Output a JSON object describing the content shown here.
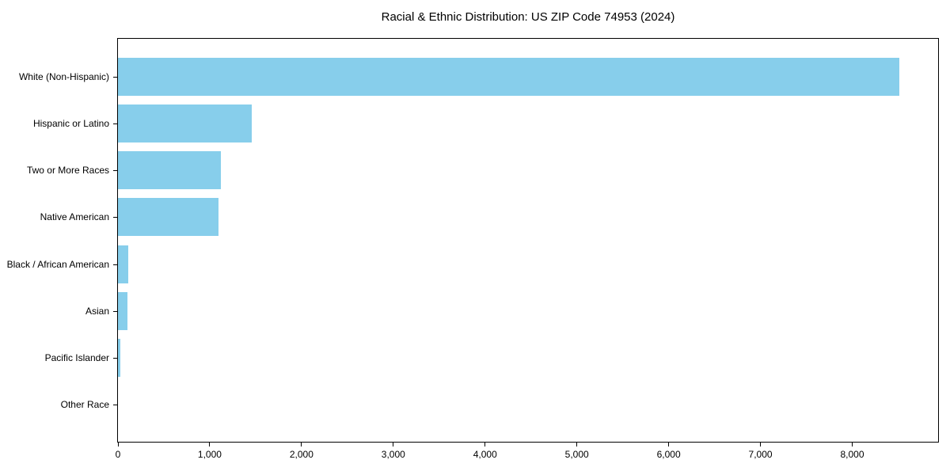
{
  "colors": {
    "bar": "#87CEEB",
    "axis": "#000000",
    "text": "#000000",
    "background": "#FFFFFF"
  },
  "chart_data": {
    "type": "bar",
    "orientation": "horizontal",
    "title": "Racial & Ethnic Distribution: US ZIP Code 74953 (2024)",
    "xlabel": "",
    "ylabel": "",
    "categories": [
      "White (Non-Hispanic)",
      "Hispanic or Latino",
      "Two or More Races",
      "Native American",
      "Black / African American",
      "Asian",
      "Pacific Islander",
      "Other Race"
    ],
    "values": [
      8510,
      1460,
      1125,
      1095,
      115,
      100,
      30,
      0
    ],
    "xlim": [
      0,
      8936
    ],
    "x_ticks": [
      0,
      1000,
      2000,
      3000,
      4000,
      5000,
      6000,
      7000,
      8000
    ],
    "x_tick_labels": [
      "0",
      "1,000",
      "2,000",
      "3,000",
      "4,000",
      "5,000",
      "6,000",
      "7,000",
      "8,000"
    ],
    "grid": false,
    "legend": null,
    "bar_color": "#87CEEB"
  }
}
